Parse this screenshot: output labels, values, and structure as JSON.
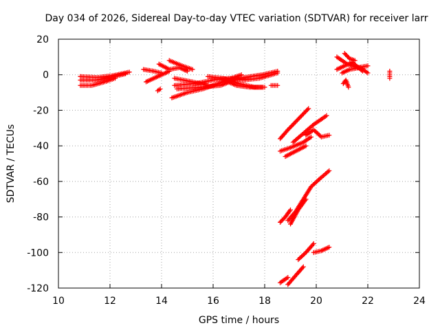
{
  "chart_data": {
    "type": "scatter",
    "title": "Day 034 of 2026, Sidereal Day-to-day VTEC variation (SDTVAR) for receiver larr",
    "xlabel": "GPS time / hours",
    "ylabel": "SDTVAR / TECUs",
    "xlim": [
      10,
      24
    ],
    "ylim": [
      -120,
      20
    ],
    "xticks": [
      "10",
      "12",
      "14",
      "16",
      "18",
      "20",
      "22",
      "24"
    ],
    "yticks": [
      "20",
      "0",
      "-20",
      "-40",
      "-60",
      "-80",
      "-100",
      "-120"
    ],
    "grid": true,
    "marker": "plus",
    "color": "#ff0000",
    "series": [
      {
        "segments": [
          {
            "x": [
              10.85,
              11.5,
              12.1,
              12.75
            ],
            "y": [
              -1,
              -1.5,
              -0.5,
              1.5
            ]
          },
          {
            "x": [
              10.85,
              11.5,
              12.0,
              12.6
            ],
            "y": [
              -3,
              -3,
              -1.5,
              0.5
            ]
          },
          {
            "x": [
              10.85,
              11.3,
              11.8,
              12.2
            ],
            "y": [
              -6,
              -6,
              -4,
              -2
            ]
          },
          {
            "x": [
              13.3,
              13.7,
              14.0
            ],
            "y": [
              3,
              2,
              1
            ]
          },
          {
            "x": [
              13.4,
              13.7,
              14.0,
              14.3
            ],
            "y": [
              -4,
              -2,
              0,
              2
            ]
          },
          {
            "x": [
              13.9,
              14.3,
              14.7,
              15.0
            ],
            "y": [
              6,
              3,
              4,
              2
            ]
          },
          {
            "x": [
              14.3,
              14.8,
              15.2
            ],
            "y": [
              8,
              5,
              3
            ]
          },
          {
            "x": [
              14.4,
              15.0,
              15.6,
              16.2,
              16.7,
              17.1
            ],
            "y": [
              -13,
              -10,
              -8,
              -5,
              -2,
              0
            ]
          },
          {
            "x": [
              14.5,
              15.3,
              16.0,
              16.6,
              17.2,
              17.8,
              18.5
            ],
            "y": [
              -6,
              -5,
              -3,
              -2,
              -3,
              -2,
              1
            ]
          },
          {
            "x": [
              14.6,
              15.5,
              16.3,
              17.0,
              17.9,
              18.5
            ],
            "y": [
              -8,
              -7,
              -6,
              -2,
              0,
              2
            ]
          },
          {
            "x": [
              15.8,
              16.4,
              17.0,
              17.6,
              18.0
            ],
            "y": [
              -1,
              -2,
              -5,
              -7,
              -7
            ]
          },
          {
            "x": [
              16.4,
              16.9,
              17.4,
              17.9
            ],
            "y": [
              -3,
              -6,
              -7,
              -7
            ]
          },
          {
            "x": [
              14.5,
              15.2,
              15.8
            ],
            "y": [
              -2,
              -4,
              -6
            ]
          },
          {
            "x": [
              18.25,
              18.5
            ],
            "y": [
              -6,
              -6
            ]
          },
          {
            "x": [
              13.85,
              13.95
            ],
            "y": [
              -9,
              -8
            ]
          },
          {
            "x": [
              18.6,
              18.9,
              19.3,
              19.7
            ],
            "y": [
              -36,
              -31,
              -25,
              -19
            ]
          },
          {
            "x": [
              19.1,
              19.5,
              19.9,
              20.4
            ],
            "y": [
              -38,
              -33,
              -28,
              -23
            ]
          },
          {
            "x": [
              18.6,
              19.0,
              19.5,
              19.8
            ],
            "y": [
              -43,
              -41,
              -38,
              -35
            ]
          },
          {
            "x": [
              18.8,
              19.2,
              19.6
            ],
            "y": [
              -46,
              -43,
              -40
            ]
          },
          {
            "x": [
              19.6,
              19.9,
              20.2,
              20.5
            ],
            "y": [
              -34,
              -31,
              -35,
              -34
            ]
          },
          {
            "x": [
              18.6,
              18.8,
              19.0
            ],
            "y": [
              -83,
              -80,
              -76
            ]
          },
          {
            "x": [
              18.9,
              19.2,
              19.5,
              19.8,
              20.1,
              20.5
            ],
            "y": [
              -82,
              -77,
              -70,
              -63,
              -59,
              -54
            ]
          },
          {
            "x": [
              19.0,
              19.3,
              19.6
            ],
            "y": [
              -84,
              -76,
              -70
            ]
          },
          {
            "x": [
              18.6,
              18.9
            ],
            "y": [
              -117,
              -114
            ]
          },
          {
            "x": [
              18.9,
              19.2,
              19.5
            ],
            "y": [
              -118,
              -113,
              -108
            ]
          },
          {
            "x": [
              19.3,
              19.6,
              19.9
            ],
            "y": [
              -104,
              -100,
              -95
            ]
          },
          {
            "x": [
              19.9,
              20.2,
              20.5
            ],
            "y": [
              -100,
              -99,
              -97
            ]
          },
          {
            "x": [
              20.8,
              21.2,
              21.6,
              22.0
            ],
            "y": [
              10,
              6,
              4,
              5
            ]
          },
          {
            "x": [
              20.8,
              21.1,
              21.4,
              21.8
            ],
            "y": [
              3,
              5,
              7,
              2
            ]
          },
          {
            "x": [
              21.0,
              21.3,
              21.7,
              22.0
            ],
            "y": [
              1,
              3,
              4,
              1
            ]
          },
          {
            "x": [
              21.1,
              21.3,
              21.5
            ],
            "y": [
              12,
              9,
              8
            ]
          },
          {
            "x": [
              21.05,
              21.15,
              21.25
            ],
            "y": [
              -5,
              -3,
              -7
            ]
          },
          {
            "x": [
              22.85,
              22.85,
              22.85
            ],
            "y": [
              -2,
              0,
              2
            ]
          }
        ]
      }
    ]
  }
}
